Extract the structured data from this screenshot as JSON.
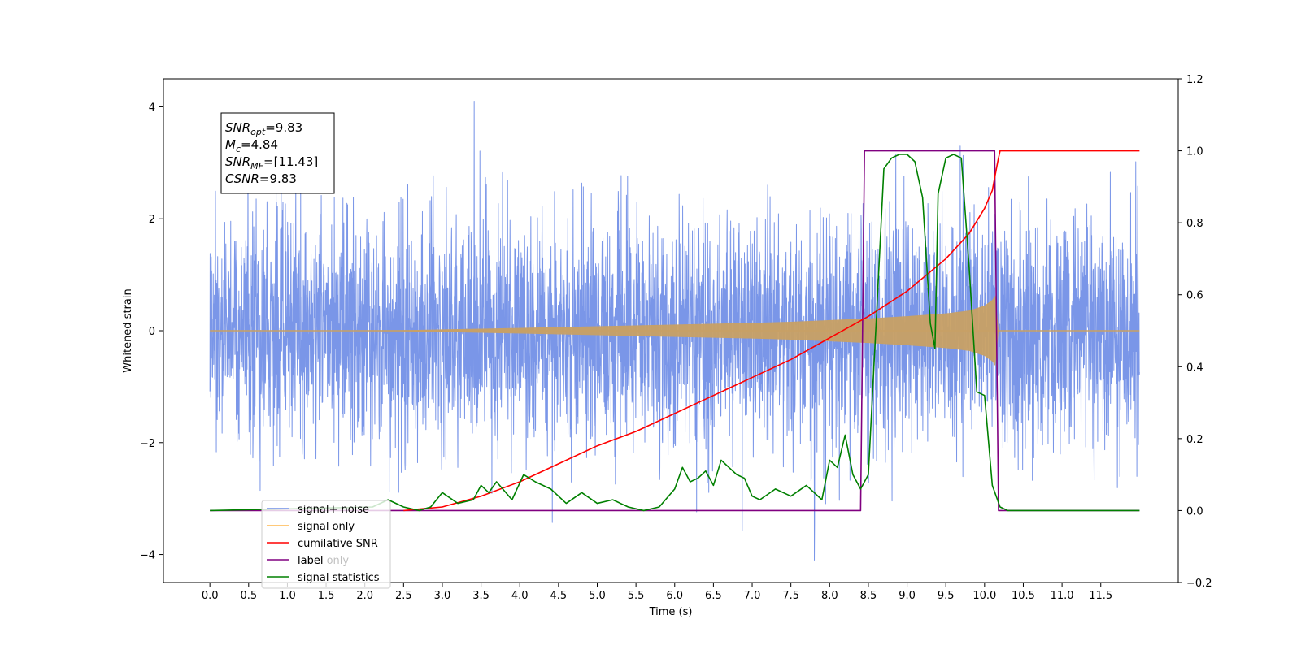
{
  "chart_data": {
    "type": "line",
    "xlabel": "Time (s)",
    "ylabel": "Whitened strain",
    "xlim": [
      -0.6,
      12.5
    ],
    "ylim": [
      -4.5,
      4.5
    ],
    "y2lim": [
      -0.2,
      1.2
    ],
    "x_ticks": [
      "0.0",
      "0.5",
      "1.0",
      "1.5",
      "2.0",
      "2.5",
      "3.0",
      "3.5",
      "4.0",
      "4.5",
      "5.0",
      "5.5",
      "6.0",
      "6.5",
      "7.0",
      "7.5",
      "8.0",
      "8.5",
      "9.0",
      "9.5",
      "10.0",
      "10.5",
      "11.0",
      "11.5"
    ],
    "y_ticks": [
      "−4",
      "−2",
      "0",
      "2",
      "4"
    ],
    "y2_ticks": [
      "−0.2",
      "0.0",
      "0.2",
      "0.4",
      "0.6",
      "0.8",
      "1.0",
      "1.2"
    ],
    "annotation": [
      {
        "symbol": "SNR",
        "sub": "opt",
        "value": "=9.83"
      },
      {
        "symbol": "M",
        "sub": "c",
        "value": "=4.84"
      },
      {
        "symbol": "SNR",
        "sub": "MF",
        "value": "=[11.43]"
      },
      {
        "symbol": "CSNR",
        "sub": "",
        "value": "=9.83"
      }
    ],
    "legend_position": "lower-left",
    "legend": [
      {
        "label": "signal+ noise",
        "color": "#6f8de6"
      },
      {
        "label": "signal only",
        "color": "#ffb74d"
      },
      {
        "label": "cumilative SNR",
        "color": "#ff0000"
      },
      {
        "label": "label",
        "color": "#800080"
      },
      {
        "label": "signal statistics",
        "color": "#008000"
      }
    ],
    "hidden_label": "label only",
    "series": [
      {
        "name": "signal+ noise",
        "axis": "left",
        "color": "#6f8de6",
        "x_range": [
          0.0,
          12.0
        ],
        "noise_std": 1.0,
        "signal_start": 2.5,
        "signal_end": 10.17,
        "signal_peak_amp": 0.7
      },
      {
        "name": "signal only",
        "axis": "left",
        "color": "#c8a064",
        "envelope": {
          "x": [
            0.0,
            2.5,
            4.0,
            5.0,
            6.0,
            7.0,
            7.5,
            8.0,
            8.5,
            9.0,
            9.5,
            9.8,
            10.0,
            10.1,
            10.15,
            10.17,
            10.2,
            12.0
          ],
          "y": [
            0.0,
            0.01,
            0.05,
            0.08,
            0.11,
            0.14,
            0.16,
            0.19,
            0.22,
            0.26,
            0.31,
            0.36,
            0.45,
            0.55,
            0.65,
            0.02,
            0.0,
            0.0
          ]
        }
      },
      {
        "name": "cumilative SNR",
        "axis": "right",
        "color": "#ff0000",
        "x": [
          2.5,
          3.0,
          3.5,
          4.0,
          4.5,
          5.0,
          5.5,
          6.0,
          6.5,
          7.0,
          7.5,
          8.0,
          8.5,
          9.0,
          9.5,
          9.8,
          10.0,
          10.1,
          10.17,
          10.2,
          12.0
        ],
        "y": [
          0.0,
          0.01,
          0.04,
          0.08,
          0.13,
          0.18,
          0.22,
          0.27,
          0.32,
          0.37,
          0.42,
          0.48,
          0.54,
          0.61,
          0.7,
          0.77,
          0.84,
          0.89,
          0.97,
          1.0,
          1.0
        ]
      },
      {
        "name": "label",
        "axis": "right",
        "color": "#800080",
        "x": [
          0.0,
          8.4,
          8.45,
          10.13,
          10.18,
          12.0
        ],
        "y": [
          0.0,
          0.0,
          1.0,
          1.0,
          0.0,
          0.0
        ]
      },
      {
        "name": "signal statistics",
        "axis": "right",
        "color": "#008000",
        "x": [
          0.0,
          2.1,
          2.3,
          2.5,
          2.7,
          2.85,
          3.0,
          3.2,
          3.4,
          3.5,
          3.6,
          3.7,
          3.9,
          4.05,
          4.2,
          4.4,
          4.6,
          4.8,
          5.0,
          5.2,
          5.4,
          5.6,
          5.8,
          6.0,
          6.1,
          6.2,
          6.3,
          6.4,
          6.5,
          6.6,
          6.7,
          6.8,
          6.9,
          7.0,
          7.1,
          7.3,
          7.5,
          7.7,
          7.9,
          8.0,
          8.1,
          8.2,
          8.3,
          8.4,
          8.5,
          8.6,
          8.7,
          8.8,
          8.9,
          9.0,
          9.1,
          9.2,
          9.3,
          9.36,
          9.4,
          9.5,
          9.6,
          9.7,
          9.8,
          9.9,
          10.0,
          10.1,
          10.2,
          10.3,
          12.0
        ],
        "y": [
          0.0,
          0.01,
          0.03,
          0.01,
          0.0,
          0.01,
          0.05,
          0.02,
          0.03,
          0.07,
          0.05,
          0.08,
          0.03,
          0.1,
          0.08,
          0.06,
          0.02,
          0.05,
          0.02,
          0.03,
          0.01,
          0.0,
          0.01,
          0.06,
          0.12,
          0.08,
          0.09,
          0.11,
          0.07,
          0.14,
          0.12,
          0.1,
          0.09,
          0.04,
          0.03,
          0.06,
          0.04,
          0.07,
          0.03,
          0.14,
          0.12,
          0.21,
          0.1,
          0.06,
          0.1,
          0.52,
          0.95,
          0.98,
          0.99,
          0.99,
          0.97,
          0.87,
          0.52,
          0.45,
          0.88,
          0.98,
          0.99,
          0.98,
          0.68,
          0.33,
          0.32,
          0.07,
          0.01,
          0.0,
          0.0
        ]
      }
    ]
  }
}
